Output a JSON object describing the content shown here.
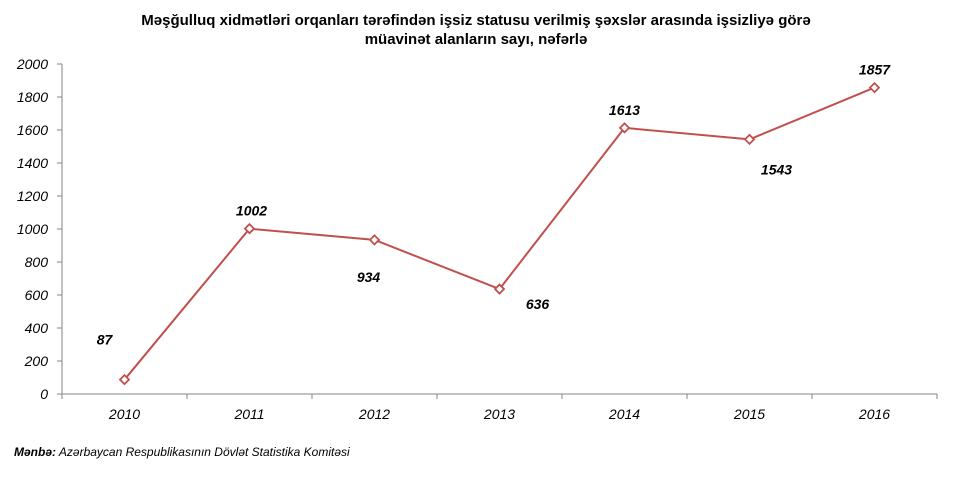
{
  "chart_data": {
    "type": "line",
    "title": "Məşğulluq xidmətləri orqanları tərəfindən işsiz statusu verilmiş şəxslər arasında işsizliyə görə müavinət alanların sayı, nəfərlə",
    "title_lines": [
      "Məşğulluq xidmətləri orqanları tərəfindən işsiz statusu verilmiş şəxslər arasında işsizliyə görə",
      "müavinət alanların sayı, nəfərlə"
    ],
    "categories": [
      "2010",
      "2011",
      "2012",
      "2013",
      "2014",
      "2015",
      "2016"
    ],
    "series": [
      {
        "values": [
          87,
          1002,
          934,
          636,
          1613,
          1543,
          1857
        ],
        "color": "#C0504D"
      }
    ],
    "data_labels": [
      "87",
      "1002",
      "934",
      "636",
      "1613",
      "1543",
      "1857"
    ],
    "data_label_positions": [
      "above",
      "above",
      "below",
      "below-right",
      "above",
      "below",
      "above"
    ],
    "ylim": [
      0,
      2000
    ],
    "yticks": [
      "0",
      "200",
      "400",
      "600",
      "800",
      "1000",
      "1200",
      "1400",
      "1600",
      "1800",
      "2000"
    ],
    "xlabel": "",
    "ylabel": "",
    "grid": false,
    "legend": "none",
    "marker": "diamond-hollow"
  },
  "source": {
    "label": "Mənbə:",
    "text": " Azərbaycan Respublikasının Dövlət  Statistika Komitəsi"
  }
}
